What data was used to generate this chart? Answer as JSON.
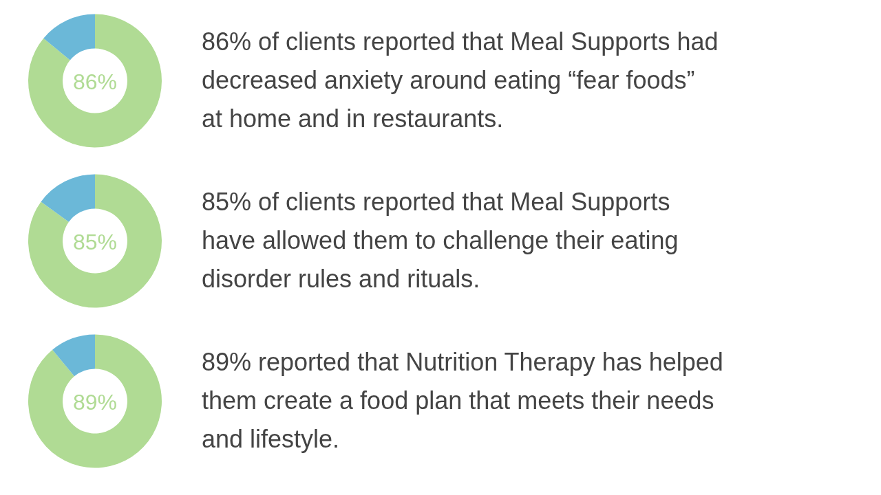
{
  "chart_data": [
    {
      "type": "donut",
      "categories": [
        null,
        null
      ],
      "values": [
        86,
        14
      ],
      "colors": [
        "#b0db94",
        "#6bb8d8"
      ],
      "value_labels": [
        "86%",
        null
      ],
      "annotations": [
        "86% of clients reported that Meal Supports had decreased anxiety around eating “fear foods” at home and in restaurants."
      ]
    },
    {
      "type": "donut",
      "categories": [
        null,
        null
      ],
      "values": [
        85,
        15
      ],
      "colors": [
        "#b0db94",
        "#6bb8d8"
      ],
      "value_labels": [
        "85%",
        null
      ],
      "annotations": [
        "85% of clients reported that Meal Supports have allowed them to challenge their eating disorder rules and rituals."
      ]
    },
    {
      "type": "donut",
      "categories": [
        null,
        null
      ],
      "values": [
        89,
        11
      ],
      "colors": [
        "#b0db94",
        "#6bb8d8"
      ],
      "value_labels": [
        "89%",
        null
      ],
      "annotations": [
        "89% reported that Nutrition Therapy has helped them create a food plan that meets their needs and lifestyle."
      ]
    }
  ]
}
